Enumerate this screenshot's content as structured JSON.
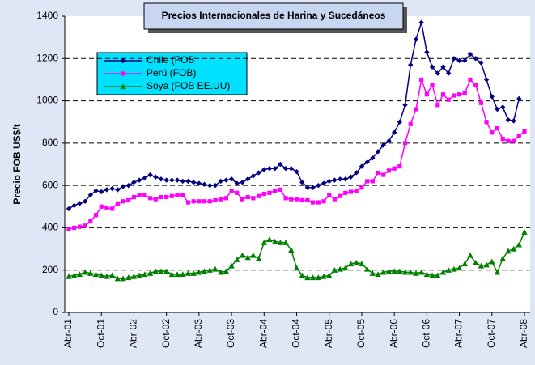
{
  "chart_data": {
    "type": "line",
    "title": "Precios Internacionales de Harina y Sucedáneos",
    "y_label": "Precio FOB US$/t",
    "categories": [
      "Abr-01",
      null,
      null,
      null,
      null,
      null,
      "Oct-01",
      null,
      null,
      null,
      null,
      null,
      "Abr-02",
      null,
      null,
      null,
      null,
      null,
      "Oct-02",
      null,
      null,
      null,
      null,
      null,
      "Abr-03",
      null,
      null,
      null,
      null,
      null,
      "Oct-03",
      null,
      null,
      null,
      null,
      null,
      "Abr-04",
      null,
      null,
      null,
      null,
      null,
      "Oct-04",
      null,
      null,
      null,
      null,
      null,
      "Abr-05",
      null,
      null,
      null,
      null,
      null,
      "Oct-05",
      null,
      null,
      null,
      null,
      null,
      "Abr-06",
      null,
      null,
      null,
      null,
      null,
      "Oct-06",
      null,
      null,
      null,
      null,
      null,
      "Abr-07",
      null,
      null,
      null,
      null,
      null,
      "Oct-07",
      null,
      null,
      null,
      null,
      null,
      "Abr-08"
    ],
    "series": [
      {
        "name": "Chile (FOB",
        "color": "#000080",
        "marker": "diamond",
        "values": [
          490,
          505,
          515,
          525,
          555,
          575,
          570,
          580,
          585,
          580,
          595,
          600,
          615,
          625,
          635,
          650,
          640,
          630,
          625,
          625,
          625,
          620,
          620,
          615,
          610,
          605,
          600,
          600,
          620,
          625,
          630,
          610,
          615,
          630,
          645,
          660,
          675,
          680,
          680,
          700,
          680,
          680,
          665,
          615,
          590,
          590,
          600,
          610,
          620,
          625,
          630,
          630,
          640,
          660,
          690,
          710,
          730,
          760,
          790,
          810,
          850,
          900,
          980,
          1170,
          1290,
          1370,
          1230,
          1160,
          1130,
          1160,
          1130,
          1200,
          1190,
          1190,
          1220,
          1200,
          1180,
          1100,
          1020,
          960,
          970,
          910,
          905,
          1010,
          null
        ]
      },
      {
        "name": "Perú (FOB)",
        "color": "#ff00ff",
        "marker": "square",
        "values": [
          395,
          400,
          405,
          410,
          430,
          460,
          500,
          495,
          490,
          515,
          525,
          530,
          545,
          555,
          555,
          540,
          535,
          545,
          545,
          550,
          555,
          555,
          520,
          525,
          525,
          525,
          525,
          530,
          535,
          540,
          575,
          565,
          535,
          545,
          540,
          550,
          560,
          565,
          575,
          580,
          540,
          535,
          535,
          530,
          530,
          520,
          520,
          525,
          555,
          535,
          550,
          565,
          570,
          575,
          590,
          620,
          620,
          660,
          650,
          670,
          680,
          690,
          800,
          890,
          960,
          1100,
          1030,
          1075,
          980,
          1030,
          1005,
          1025,
          1030,
          1035,
          1100,
          1075,
          990,
          900,
          850,
          870,
          820,
          810,
          810,
          835,
          855
        ]
      },
      {
        "name": "Soya (FOB EE.UU)",
        "color": "#008000",
        "marker": "triangle",
        "values": [
          170,
          175,
          180,
          190,
          185,
          180,
          175,
          170,
          175,
          160,
          160,
          165,
          170,
          175,
          180,
          185,
          195,
          195,
          195,
          180,
          180,
          180,
          185,
          185,
          190,
          195,
          200,
          205,
          190,
          195,
          220,
          250,
          270,
          260,
          270,
          255,
          330,
          345,
          335,
          330,
          330,
          295,
          210,
          175,
          165,
          165,
          165,
          170,
          175,
          200,
          205,
          210,
          230,
          235,
          230,
          205,
          185,
          180,
          190,
          195,
          195,
          195,
          190,
          190,
          185,
          190,
          180,
          175,
          175,
          190,
          200,
          205,
          210,
          230,
          270,
          235,
          220,
          225,
          240,
          190,
          255,
          290,
          300,
          320,
          380
        ]
      }
    ],
    "ylim": [
      0,
      1400
    ],
    "yticks": [
      0,
      200,
      400,
      600,
      800,
      1000,
      1200,
      1400
    ],
    "grid": true
  }
}
